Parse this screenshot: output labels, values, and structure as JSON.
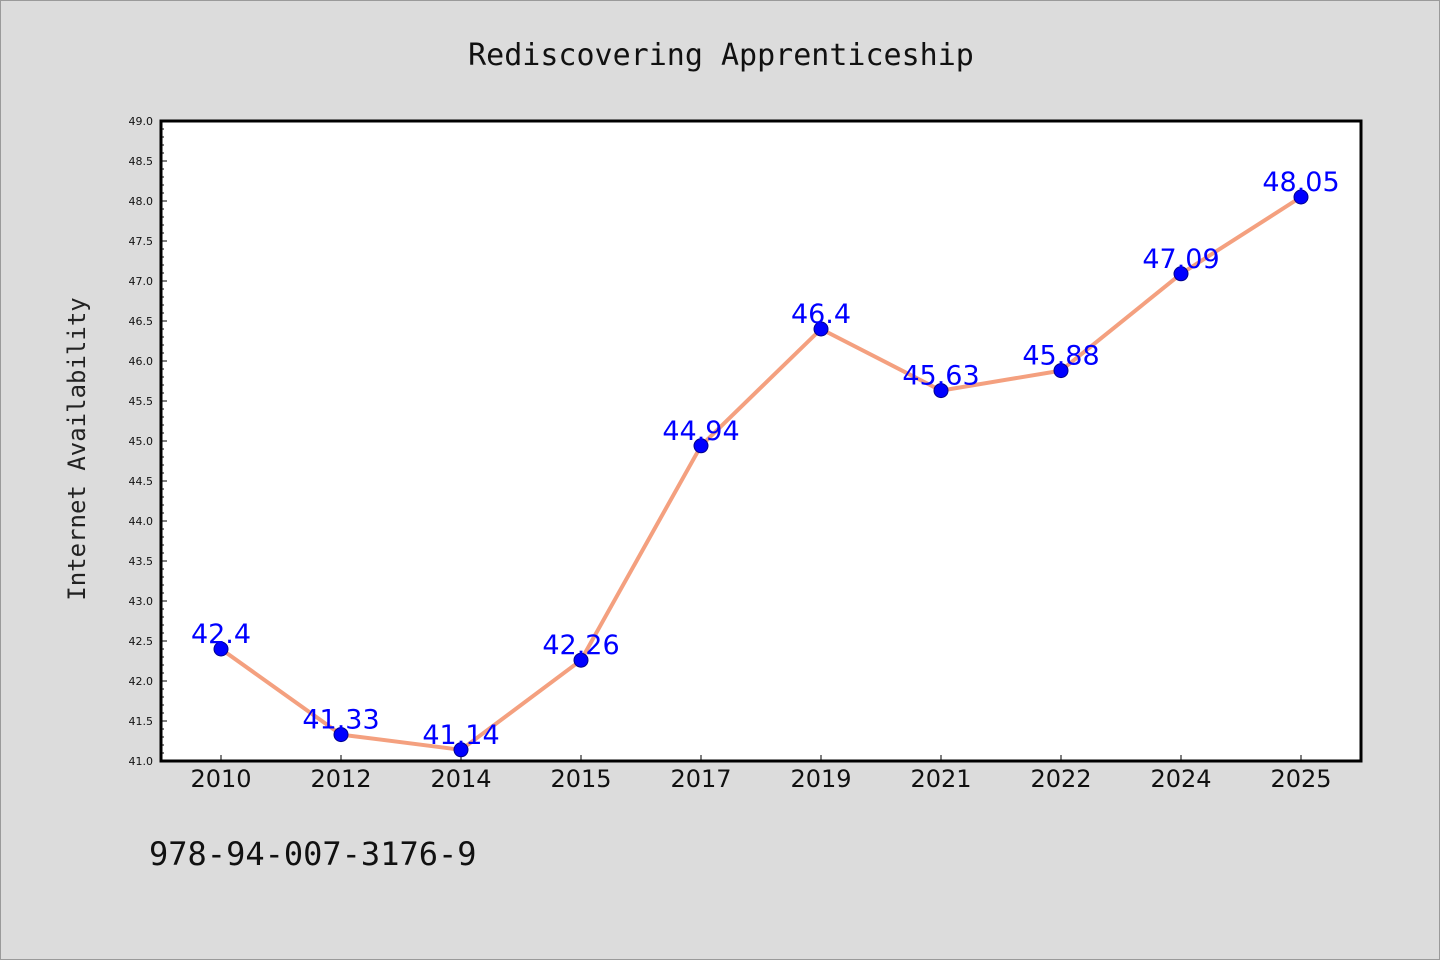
{
  "chart_data": {
    "type": "line",
    "title": "Rediscovering Apprenticeship",
    "xlabel": "",
    "ylabel": "Internet Availability",
    "categories": [
      "2010",
      "2012",
      "2014",
      "2015",
      "2017",
      "2019",
      "2021",
      "2022",
      "2024",
      "2025"
    ],
    "series": [
      {
        "values": [
          42.4,
          41.33,
          41.14,
          42.26,
          44.94,
          46.4,
          45.63,
          45.88,
          47.09,
          48.05
        ]
      }
    ],
    "data_labels": [
      "42.4",
      "41.33",
      "41.14",
      "42.26",
      "44.94",
      "46.4",
      "45.63",
      "45.88",
      "47.09",
      "48.05"
    ],
    "ylim": [
      41.0,
      49.0
    ],
    "yticks": [
      "41.0",
      "41.5",
      "42.0",
      "42.5",
      "43.0",
      "43.5",
      "44.0",
      "44.5",
      "45.0",
      "45.5",
      "46.0",
      "46.5",
      "47.0",
      "47.5",
      "48.0",
      "48.5",
      "49.0"
    ],
    "grid": false,
    "legend": "none",
    "line_color": "#f4a07f",
    "marker_color": "#0000ff",
    "label_color": "#0000ff",
    "plot_background": "#ffffff",
    "figure_background": "#dcdcdc"
  },
  "footer": {
    "isbn": "978-94-007-3176-9"
  }
}
